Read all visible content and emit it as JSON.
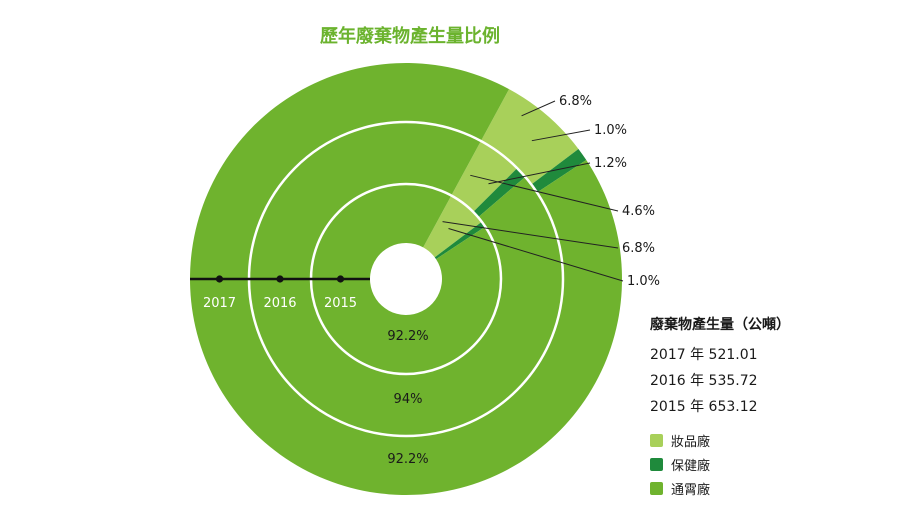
{
  "title": "歷年廢棄物產生量比例",
  "colors": {
    "cosmetics": "#a8d05a",
    "health": "#1f8a3c",
    "general": "#6fb32e",
    "separator": "#ffffff"
  },
  "info": {
    "heading": "廢棄物產生量（公噸）",
    "rows": [
      {
        "year": "2017",
        "unit": "年",
        "value": "521.01"
      },
      {
        "year": "2016",
        "unit": "年",
        "value": "535.72"
      },
      {
        "year": "2015",
        "unit": "年",
        "value": "653.12"
      }
    ]
  },
  "chart_data": {
    "type": "pie",
    "title": "歷年廢棄物產生量比例",
    "rings_inner_to_outer": [
      "2015",
      "2016",
      "2017"
    ],
    "categories": [
      "妝品廠",
      "保健廠",
      "通霄廠"
    ],
    "series": [
      {
        "name": "2015",
        "values": [
          6.8,
          1.0,
          92.2
        ],
        "labels": [
          "6.8%",
          "1.0%",
          "92.2%"
        ]
      },
      {
        "name": "2016",
        "values": [
          4.6,
          1.2,
          94
        ],
        "labels": [
          "4.6%",
          "1.2%",
          "94%"
        ]
      },
      {
        "name": "2017",
        "values": [
          6.8,
          1.0,
          92.2
        ],
        "labels": [
          "6.8%",
          "1.0%",
          "92.2%"
        ]
      }
    ],
    "legend": [
      "妝品廠",
      "保健廠",
      "通霄廠"
    ],
    "legend_position": "bottom-right"
  }
}
